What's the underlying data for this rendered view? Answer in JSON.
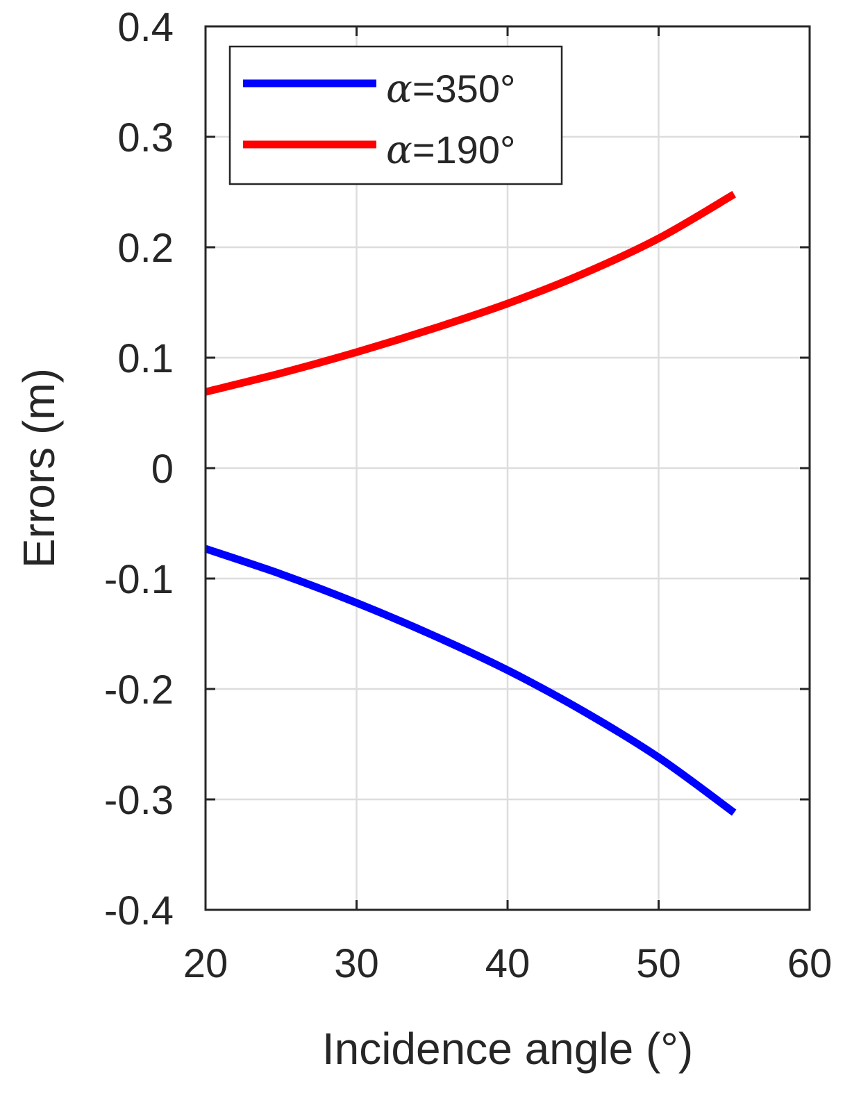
{
  "chart_data": {
    "type": "line",
    "xlabel": "Incidence angle (°)",
    "ylabel": "Errors (m)",
    "xlim": [
      20,
      60
    ],
    "ylim": [
      -0.4,
      0.4
    ],
    "x_ticks": [
      20,
      30,
      40,
      50,
      60
    ],
    "y_ticks": [
      -0.4,
      -0.3,
      -0.2,
      -0.1,
      0,
      0.1,
      0.2,
      0.3,
      0.4
    ],
    "x_tick_labels": [
      "20",
      "30",
      "40",
      "50",
      "60"
    ],
    "y_tick_labels": [
      "-0.4",
      "-0.3",
      "-0.2",
      "-0.1",
      "0",
      "0.1",
      "0.2",
      "0.3",
      "0.4"
    ],
    "grid": true,
    "legend_position": "top-left",
    "series": [
      {
        "name": "α=350°",
        "legend_symbol": "α",
        "legend_text": "=350°",
        "color": "#0000ff",
        "x": [
          20,
          25,
          30,
          35,
          40,
          45,
          50,
          55
        ],
        "y": [
          -0.073,
          -0.096,
          -0.122,
          -0.151,
          -0.183,
          -0.22,
          -0.262,
          -0.312
        ]
      },
      {
        "name": "α=190°",
        "legend_symbol": "α",
        "legend_text": "=190°",
        "color": "#ff0000",
        "x": [
          20,
          25,
          30,
          35,
          40,
          45,
          50,
          55
        ],
        "y": [
          0.069,
          0.086,
          0.105,
          0.126,
          0.149,
          0.176,
          0.208,
          0.248
        ]
      }
    ]
  }
}
